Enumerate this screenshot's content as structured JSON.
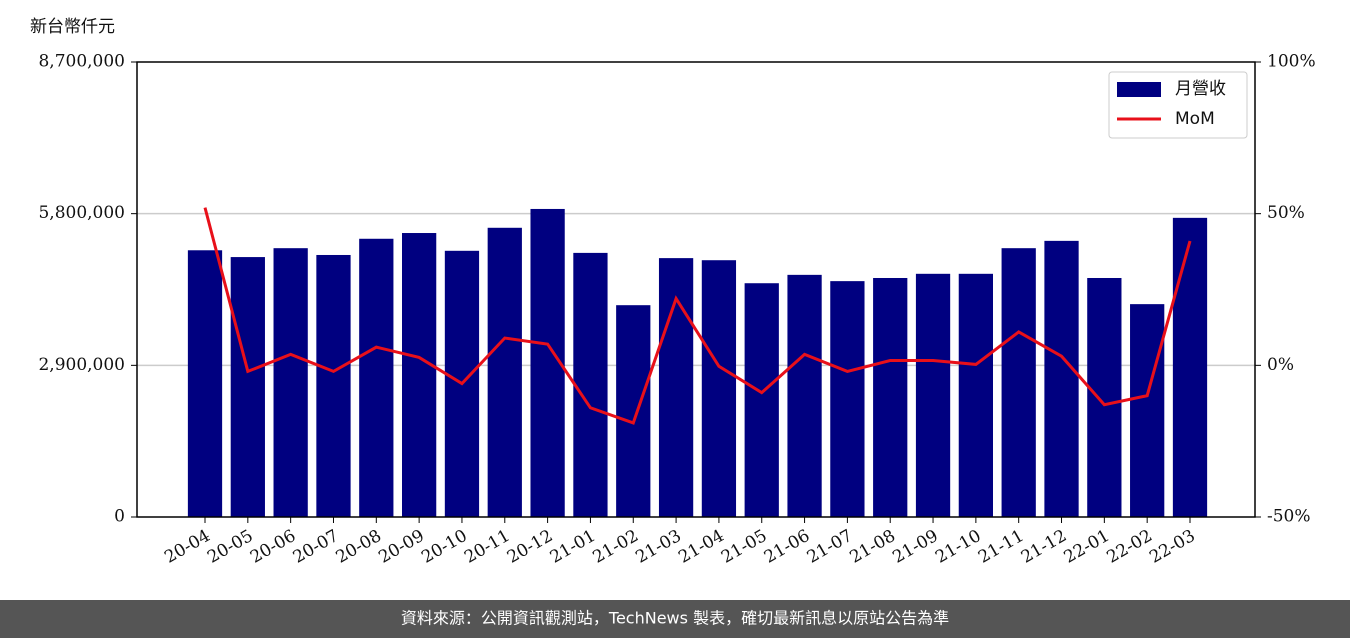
{
  "chart_data": {
    "type": "bar",
    "y_label": "新台幣仟元",
    "categories": [
      "20-04",
      "20-05",
      "20-06",
      "20-07",
      "20-08",
      "20-09",
      "20-10",
      "20-11",
      "20-12",
      "21-01",
      "21-02",
      "21-03",
      "21-04",
      "21-05",
      "21-06",
      "21-07",
      "21-08",
      "21-09",
      "21-10",
      "21-11",
      "21-12",
      "22-01",
      "22-02",
      "22-03"
    ],
    "series": [
      {
        "name": "月營收",
        "color": "#000080",
        "type": "bar",
        "values": [
          5100000,
          4970000,
          5140000,
          5010000,
          5320000,
          5430000,
          5090000,
          5530000,
          5890000,
          5050000,
          4050000,
          4950000,
          4910000,
          4470000,
          4630000,
          4510000,
          4570000,
          4650000,
          4650000,
          5140000,
          5280000,
          4570000,
          4070000,
          5720000
        ]
      },
      {
        "name": "MoM",
        "color": "#e8101a",
        "type": "line",
        "axis": "y2",
        "values": [
          52,
          -2,
          3.6,
          -2,
          6,
          2.6,
          -6,
          9,
          7,
          -14,
          -19,
          22,
          -0.3,
          -9,
          3.6,
          -2,
          1.6,
          1.6,
          0.3,
          11,
          3,
          -13,
          -10,
          41
        ]
      }
    ],
    "ylim": [
      0,
      8700000
    ],
    "yticks": [
      0,
      {
        "value": 2900000,
        "label": "2,900,000"
      },
      {
        "value": 5800000,
        "label": "5,800,000"
      },
      {
        "value": 8700000,
        "label": "8,700,000"
      }
    ],
    "y2lim": [
      -50,
      100
    ],
    "y2ticks": [
      {
        "value": -50,
        "label": "-50%"
      },
      {
        "value": 0,
        "label": "0%"
      },
      {
        "value": 50,
        "label": "50%"
      },
      {
        "value": 100,
        "label": "100%"
      }
    ],
    "grid": true,
    "legend": "upper right"
  },
  "footer": "資料來源：公開資訊觀測站，TechNews 製表，確切最新訊息以原站公告為準"
}
